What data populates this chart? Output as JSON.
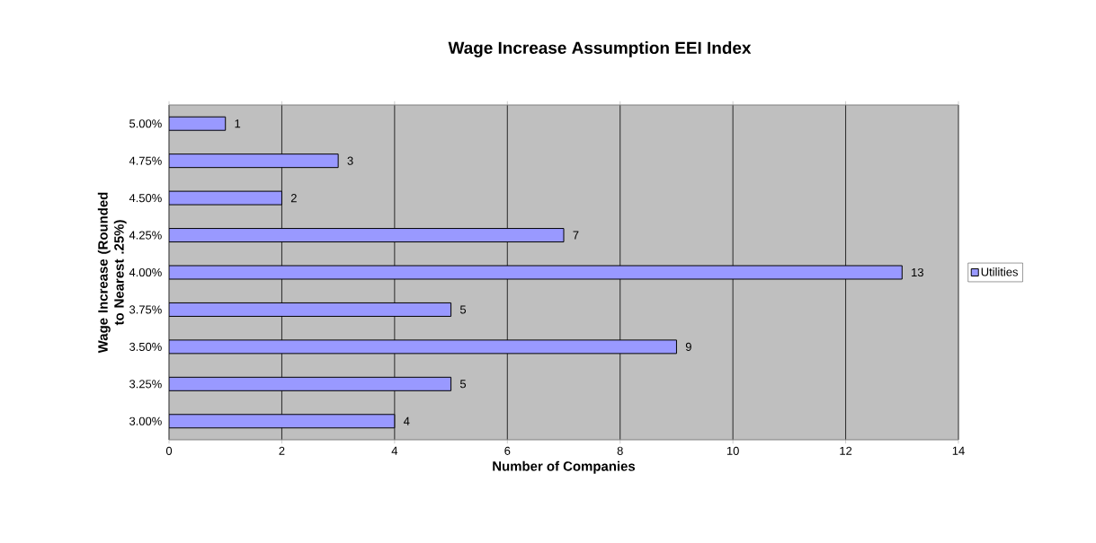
{
  "chart_data": {
    "type": "bar",
    "orientation": "horizontal",
    "title": "Wage Increase Assumption EEI Index",
    "xlabel": "Number of Companies",
    "ylabel": "Wage Increase (Rounded to Nearest .25%)",
    "categories": [
      "5.00%",
      "4.75%",
      "4.50%",
      "4.25%",
      "4.00%",
      "3.75%",
      "3.50%",
      "3.25%",
      "3.00%"
    ],
    "series": [
      {
        "name": "Utilities",
        "color": "#9999ff",
        "values": [
          1,
          3,
          2,
          7,
          13,
          5,
          9,
          5,
          4
        ]
      }
    ],
    "xlim": [
      0,
      14
    ],
    "xticks": [
      0,
      2,
      4,
      6,
      8,
      10,
      12,
      14
    ],
    "grid": "x",
    "legend": "right",
    "data_labels": true
  }
}
